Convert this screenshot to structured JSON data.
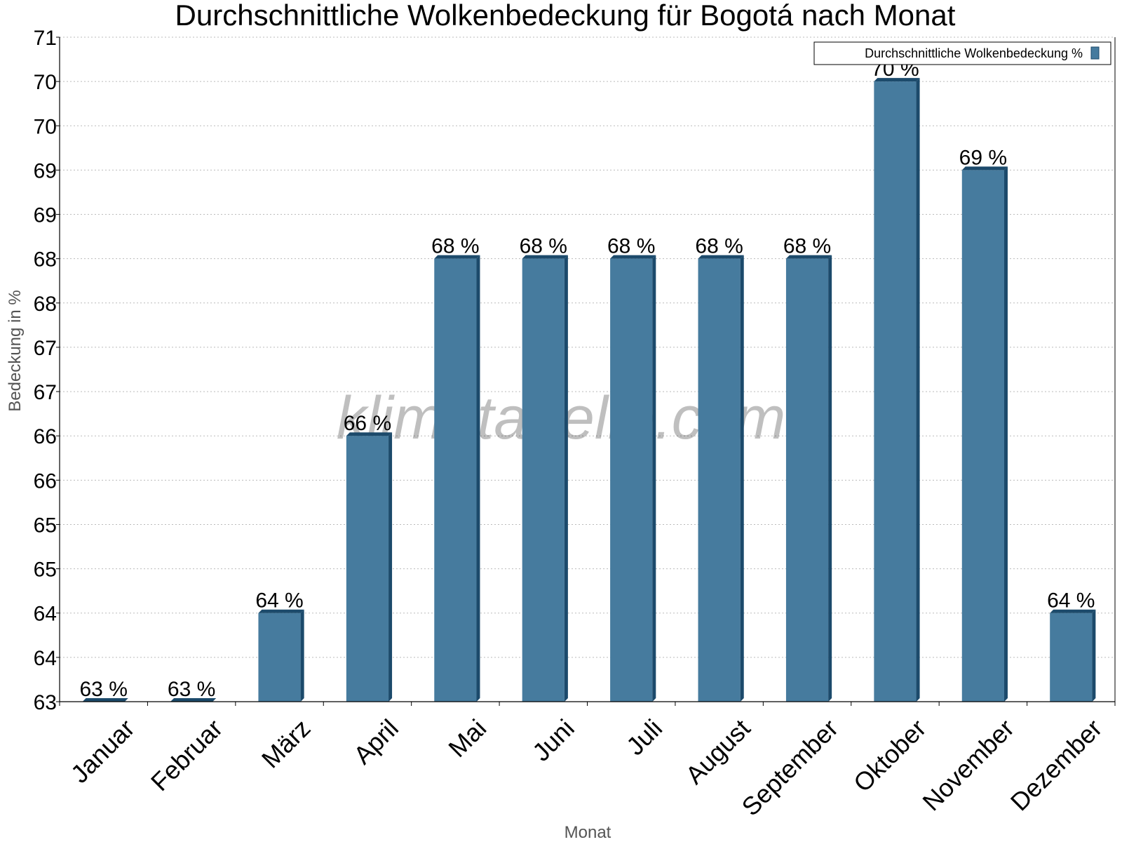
{
  "chart_data": {
    "type": "bar",
    "title": "Durchschnittliche Wolkenbedeckung für Bogotá nach Monat",
    "xlabel": "Monat",
    "ylabel": "Bedeckung in %",
    "categories": [
      "Januar",
      "Februar",
      "März",
      "April",
      "Mai",
      "Juni",
      "Juli",
      "August",
      "September",
      "Oktober",
      "November",
      "Dezember"
    ],
    "series": [
      {
        "name": "Durchschnittliche Wolkenbedeckung %",
        "values": [
          63,
          63,
          64,
          66,
          68,
          68,
          68,
          68,
          68,
          70,
          69,
          64
        ],
        "data_labels": [
          "63 %",
          "63 %",
          "64 %",
          "66 %",
          "68 %",
          "68 %",
          "68 %",
          "68 %",
          "68 %",
          "70 %",
          "69 %",
          "64 %"
        ]
      }
    ],
    "ylim": [
      63,
      70.5
    ],
    "ytick_values": [
      63,
      63.5,
      64,
      64.5,
      65,
      65.5,
      66,
      66.5,
      67,
      67.5,
      68,
      68.5,
      69,
      69.5,
      70,
      70.5
    ],
    "ytick_labels": [
      "63",
      "64",
      "64",
      "65",
      "65",
      "66",
      "66",
      "67",
      "67",
      "68",
      "68",
      "69",
      "69",
      "70",
      "70",
      "71"
    ],
    "grid": true,
    "legend_position": "top-right",
    "colors": {
      "bar": "#467b9e",
      "bar_side": "#1c4a6b",
      "bar_top": "#1c4a6b",
      "grid": "#bbbbbb"
    },
    "watermark": "klimatabelle.com"
  }
}
